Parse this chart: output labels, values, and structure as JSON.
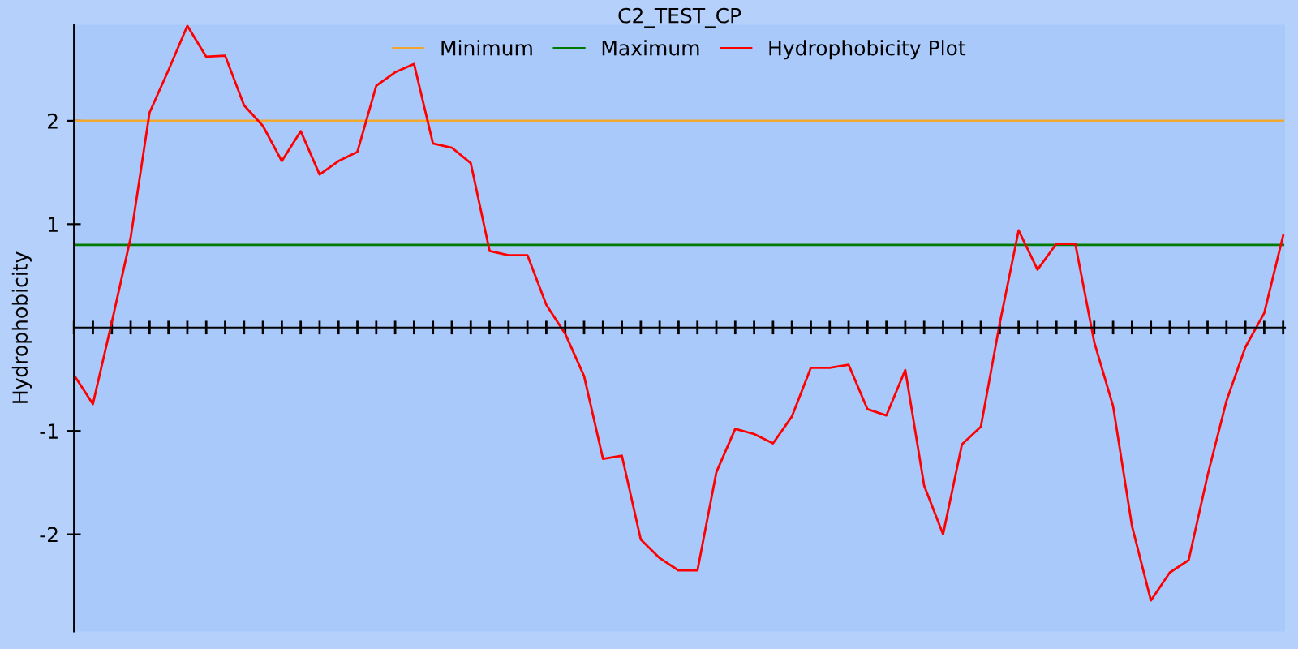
{
  "chart_data": {
    "type": "line",
    "title": "C2_TEST_CP",
    "ylabel": "Hydrophobicity",
    "categories": [
      null,
      null,
      null,
      null,
      null,
      null,
      null,
      null,
      null,
      null,
      null,
      null,
      null,
      null,
      null,
      null,
      null,
      null,
      null,
      null,
      null,
      null,
      null,
      null,
      null,
      null,
      null,
      null,
      null,
      null,
      null,
      null,
      null,
      null,
      null,
      null,
      null,
      null,
      null,
      null,
      null,
      null,
      null,
      null,
      null,
      null,
      null,
      null,
      null,
      null,
      null,
      null,
      null,
      null,
      null,
      null,
      null,
      null,
      null,
      null,
      null,
      null,
      null,
      null,
      null
    ],
    "series": [
      {
        "name": "Minimum",
        "color": "#f0a830",
        "values": [
          2,
          2,
          2,
          2,
          2,
          2,
          2,
          2,
          2,
          2,
          2,
          2,
          2,
          2,
          2,
          2,
          2,
          2,
          2,
          2,
          2,
          2,
          2,
          2,
          2,
          2,
          2,
          2,
          2,
          2,
          2,
          2,
          2,
          2,
          2,
          2,
          2,
          2,
          2,
          2,
          2,
          2,
          2,
          2,
          2,
          2,
          2,
          2,
          2,
          2,
          2,
          2,
          2,
          2,
          2,
          2,
          2,
          2,
          2,
          2,
          2,
          2,
          2,
          2,
          2
        ]
      },
      {
        "name": "Maximum",
        "color": "#007a00",
        "values": [
          0.8,
          0.8,
          0.8,
          0.8,
          0.8,
          0.8,
          0.8,
          0.8,
          0.8,
          0.8,
          0.8,
          0.8,
          0.8,
          0.8,
          0.8,
          0.8,
          0.8,
          0.8,
          0.8,
          0.8,
          0.8,
          0.8,
          0.8,
          0.8,
          0.8,
          0.8,
          0.8,
          0.8,
          0.8,
          0.8,
          0.8,
          0.8,
          0.8,
          0.8,
          0.8,
          0.8,
          0.8,
          0.8,
          0.8,
          0.8,
          0.8,
          0.8,
          0.8,
          0.8,
          0.8,
          0.8,
          0.8,
          0.8,
          0.8,
          0.8,
          0.8,
          0.8,
          0.8,
          0.8,
          0.8,
          0.8,
          0.8,
          0.8,
          0.8,
          0.8,
          0.8,
          0.8,
          0.8,
          0.8,
          0.8
        ]
      },
      {
        "name": "Hydrophobicity Plot",
        "color": "#ff0000",
        "values": [
          -0.46,
          -0.74,
          0.05,
          0.87,
          2.08,
          2.49,
          2.92,
          2.62,
          2.63,
          2.15,
          1.95,
          1.61,
          1.9,
          1.48,
          1.61,
          1.7,
          2.34,
          2.47,
          2.55,
          1.78,
          1.74,
          1.59,
          0.74,
          0.7,
          0.7,
          0.22,
          -0.06,
          -0.47,
          -1.27,
          -1.24,
          -2.05,
          -2.23,
          -2.35,
          -2.35,
          -1.4,
          -0.98,
          -1.03,
          -1.12,
          -0.86,
          -0.39,
          -0.39,
          -0.36,
          -0.79,
          -0.85,
          -0.41,
          -1.53,
          -2.0,
          -1.13,
          -0.96,
          0.04,
          0.94,
          0.56,
          0.81,
          0.81,
          -0.14,
          -0.76,
          -1.92,
          -2.64,
          -2.37,
          -2.25,
          -1.43,
          -0.71,
          -0.19,
          0.14,
          0.89
        ]
      }
    ],
    "ylim": [
      -2.94,
      2.93
    ],
    "yticks": [
      -2,
      -1,
      1,
      2
    ],
    "legend": "top",
    "grid": false,
    "marker": "none",
    "line_style": "solid"
  }
}
